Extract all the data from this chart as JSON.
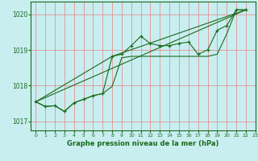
{
  "title": "Graphe pression niveau de la mer (hPa)",
  "bg_color": "#c8eef0",
  "grid_color": "#e88080",
  "line_color": "#1a6b1a",
  "xlim": [
    -0.5,
    23
  ],
  "ylim": [
    1016.75,
    1020.35
  ],
  "yticks": [
    1017,
    1018,
    1019,
    1020
  ],
  "xticks": [
    0,
    1,
    2,
    3,
    4,
    5,
    6,
    7,
    8,
    9,
    10,
    11,
    12,
    13,
    14,
    15,
    16,
    17,
    18,
    19,
    20,
    21,
    22,
    23
  ],
  "series1": [
    [
      0,
      1017.55
    ],
    [
      1,
      1017.42
    ],
    [
      2,
      1017.44
    ],
    [
      3,
      1017.28
    ],
    [
      4,
      1017.52
    ],
    [
      5,
      1017.62
    ],
    [
      6,
      1017.72
    ],
    [
      7,
      1017.78
    ],
    [
      8,
      1018.82
    ],
    [
      9,
      1018.88
    ],
    [
      10,
      1019.12
    ],
    [
      11,
      1019.38
    ],
    [
      12,
      1019.18
    ],
    [
      13,
      1019.12
    ],
    [
      14,
      1019.12
    ],
    [
      15,
      1019.18
    ],
    [
      16,
      1019.22
    ],
    [
      17,
      1018.88
    ],
    [
      18,
      1019.0
    ],
    [
      19,
      1019.55
    ],
    [
      20,
      1019.68
    ],
    [
      21,
      1020.12
    ],
    [
      22,
      1020.12
    ]
  ],
  "series2": [
    [
      0,
      1017.55
    ],
    [
      1,
      1017.42
    ],
    [
      2,
      1017.44
    ],
    [
      3,
      1017.28
    ],
    [
      4,
      1017.52
    ],
    [
      5,
      1017.62
    ],
    [
      6,
      1017.72
    ],
    [
      7,
      1017.78
    ],
    [
      8,
      1017.98
    ],
    [
      9,
      1018.78
    ],
    [
      10,
      1018.82
    ],
    [
      11,
      1018.82
    ],
    [
      12,
      1018.82
    ],
    [
      13,
      1018.82
    ],
    [
      14,
      1018.82
    ],
    [
      15,
      1018.82
    ],
    [
      16,
      1018.82
    ],
    [
      17,
      1018.82
    ],
    [
      18,
      1018.82
    ],
    [
      19,
      1018.88
    ],
    [
      20,
      1019.45
    ],
    [
      21,
      1020.12
    ],
    [
      22,
      1020.12
    ]
  ],
  "series3": [
    [
      0,
      1017.55
    ],
    [
      8,
      1018.82
    ],
    [
      22,
      1020.12
    ]
  ],
  "series4": [
    [
      0,
      1017.55
    ],
    [
      22,
      1020.12
    ]
  ]
}
